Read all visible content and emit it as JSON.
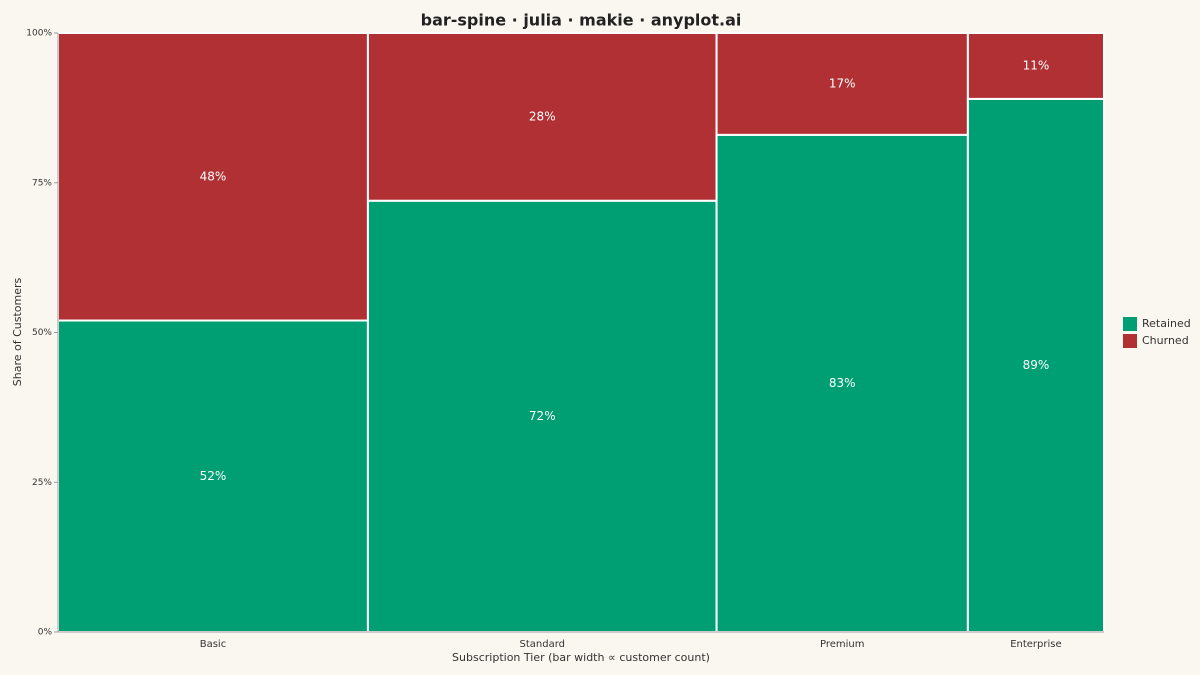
{
  "chart_data": {
    "type": "spine",
    "title": "bar-spine · julia · makie · anyplot.ai",
    "x_label": "Subscription Tier  (bar width ∝ customer count)",
    "y_label": "Share of Customers",
    "categories": [
      "Basic",
      "Standard",
      "Premium",
      "Enterprise"
    ],
    "counts": [
      2960,
      3330,
      2400,
      1300
    ],
    "series": [
      {
        "name": "Retained",
        "color": "#009e73",
        "values": [
          52,
          72,
          83,
          89
        ],
        "value_labels": [
          "52%",
          "72%",
          "83%",
          "89%"
        ]
      },
      {
        "name": "Churned",
        "color": "#b03034",
        "values": [
          48,
          28,
          17,
          11
        ],
        "value_labels": [
          "48%",
          "28%",
          "17%",
          "11%"
        ]
      }
    ],
    "ylim": [
      0,
      100
    ],
    "yticks": [
      {
        "value": 0,
        "label": "0%"
      },
      {
        "value": 25,
        "label": "25%"
      },
      {
        "value": 50,
        "label": "50%"
      },
      {
        "value": 75,
        "label": "75%"
      },
      {
        "value": 100,
        "label": "100%"
      }
    ],
    "grid": false,
    "legend": "right"
  }
}
